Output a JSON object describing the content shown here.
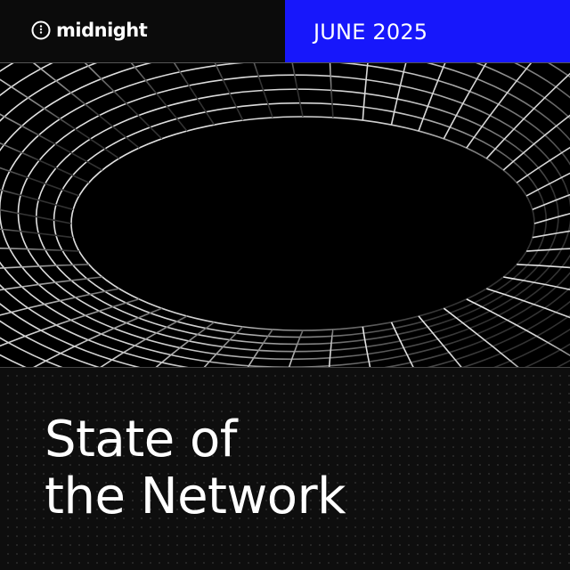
{
  "brand": {
    "name": "midnight",
    "logo_icon": "circle-dots-icon"
  },
  "header": {
    "date": "JUNE 2025",
    "accent_color": "#1717fb"
  },
  "artwork": {
    "description_icon": "wireframe-tunnel-icon"
  },
  "title": {
    "line1": "State of",
    "line2": "the Network"
  }
}
